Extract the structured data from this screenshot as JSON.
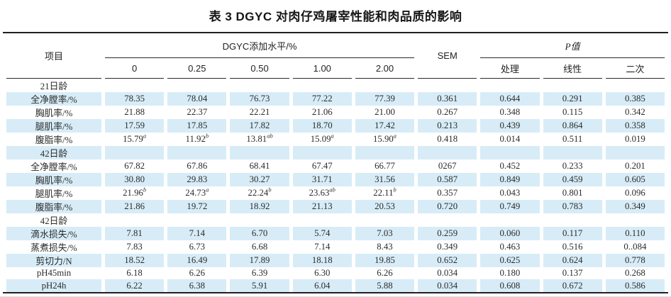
{
  "title": "表 3 DGYC 对肉仔鸡屠宰性能和肉品质的影响",
  "colors": {
    "row_highlight": "#d7ecf7",
    "rule": "#231f20",
    "text": "#2b2b2b"
  },
  "table": {
    "headers": {
      "item": "项目",
      "dgyc_group": "DGYC添加水平/%",
      "sem": "SEM",
      "pvalue_group": "P值"
    },
    "level_columns": [
      "0",
      "0.25",
      "0.50",
      "1.00",
      "2.00"
    ],
    "p_columns": [
      "处理",
      "线性",
      "二次"
    ],
    "rows": [
      {
        "type": "section",
        "label": "21日龄",
        "shaded": false
      },
      {
        "type": "data",
        "label": "全净膛率/%",
        "shaded": true,
        "values": [
          "78.35",
          "78.04",
          "76.73",
          "77.22",
          "77.39",
          "0.361",
          "0.644",
          "0.291",
          "0.385"
        ]
      },
      {
        "type": "data",
        "label": "胸肌率/%",
        "shaded": false,
        "values": [
          "21.88",
          "22.37",
          "22.21",
          "21.06",
          "21.00",
          "0.267",
          "0.348",
          "0.115",
          "0.342"
        ]
      },
      {
        "type": "data",
        "label": "腿肌率/%",
        "shaded": true,
        "values": [
          "17.59",
          "17.85",
          "17.82",
          "18.70",
          "17.42",
          "0.213",
          "0.439",
          "0.864",
          "0.358"
        ]
      },
      {
        "type": "data",
        "label": "腹脂率/%",
        "shaded": false,
        "values": [
          "15.79^a",
          "11.92^b",
          "13.81^ab",
          "15.09^a",
          "15.90^a",
          "0.418",
          "0.014",
          "0.511",
          "0.019"
        ]
      },
      {
        "type": "section",
        "label": "42日龄",
        "shaded": true
      },
      {
        "type": "data",
        "label": "全净膛率/%",
        "shaded": false,
        "values": [
          "67.82",
          "67.86",
          "68.41",
          "67.47",
          "66.77",
          "0267",
          "0.452",
          "0.233",
          "0.201"
        ]
      },
      {
        "type": "data",
        "label": "胸肌率/%",
        "shaded": true,
        "values": [
          "30.80",
          "29.83",
          "30.27",
          "31.71",
          "31.56",
          "0.587",
          "0.849",
          "0.459",
          "0.605"
        ]
      },
      {
        "type": "data",
        "label": "腿肌率/%",
        "shaded": false,
        "values": [
          "21.96^b",
          "24.73^a",
          "22.24^b",
          "23.63^ab",
          "22.11^b",
          "0.357",
          "0.043",
          "0.801",
          "0.096"
        ]
      },
      {
        "type": "data",
        "label": "腹脂率/%",
        "shaded": true,
        "values": [
          "21.86",
          "19.72",
          "18.92",
          "21.13",
          "20.53",
          "0.720",
          "0.749",
          "0.783",
          "0.349"
        ]
      },
      {
        "type": "section",
        "label": "42日龄",
        "shaded": false
      },
      {
        "type": "data",
        "label": "滴水损失/%",
        "shaded": true,
        "values": [
          "7.81",
          "7.14",
          "6.70",
          "5.74",
          "7.03",
          "0.259",
          "0.060",
          "0.117",
          "0.110"
        ]
      },
      {
        "type": "data",
        "label": "蒸煮损失/%",
        "shaded": false,
        "values": [
          "7.83",
          "6.73",
          "6.68",
          "7.14",
          "8.43",
          "0.349",
          "0.463",
          "0.516",
          "0..084"
        ]
      },
      {
        "type": "data",
        "label": "剪切力/N",
        "shaded": true,
        "values": [
          "18.52",
          "16.49",
          "17.89",
          "18.18",
          "19.85",
          "0.652",
          "0.625",
          "0.624",
          "0.778"
        ]
      },
      {
        "type": "data",
        "label": "pH45min",
        "shaded": false,
        "values": [
          "6.18",
          "6.26",
          "6.39",
          "6.30",
          "6.26",
          "0.034",
          "0.180",
          "0.137",
          "0.268"
        ]
      },
      {
        "type": "data",
        "label": "pH24h",
        "shaded": true,
        "values": [
          "6.22",
          "6.38",
          "5.91",
          "6.04",
          "5.88",
          "0.034",
          "0.608",
          "0.672",
          "0.586"
        ]
      }
    ]
  }
}
